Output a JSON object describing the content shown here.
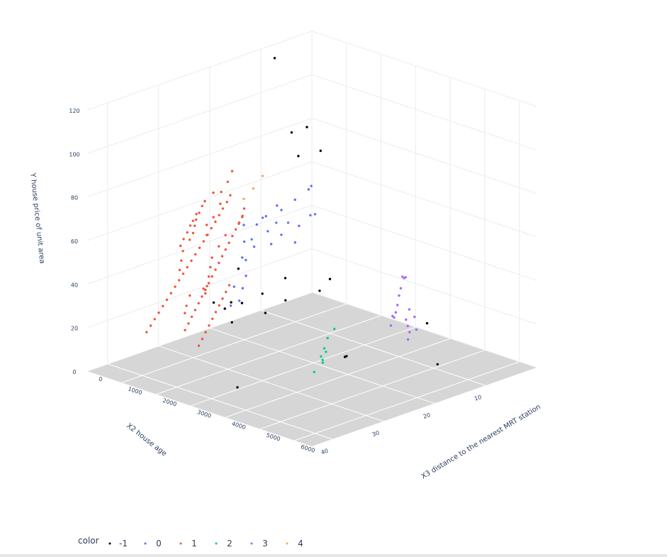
{
  "chart_data": {
    "type": "scatter",
    "dimensions": "3d",
    "axes": {
      "x": {
        "label": "X3 distance to the nearest MRT station",
        "ticks": [
          "0",
          "1000",
          "2000",
          "3000",
          "4000",
          "5000",
          "6000"
        ],
        "range": [
          0,
          6500
        ]
      },
      "y": {
        "label": "X2 house age",
        "ticks": [
          "10",
          "20",
          "30",
          "40"
        ],
        "range": [
          0,
          44
        ]
      },
      "z": {
        "label": "Y house price of unit area",
        "ticks": [
          "0",
          "20",
          "40",
          "60",
          "80",
          "100",
          "120"
        ],
        "range": [
          0,
          120
        ]
      }
    },
    "grid": true,
    "legend": {
      "title": "color",
      "placement": "bottom-left",
      "entries": [
        {
          "label": "-1",
          "color": "#000000"
        },
        {
          "label": "0",
          "color": "#636efa"
        },
        {
          "label": "1",
          "color": "#ef553b"
        },
        {
          "label": "2",
          "color": "#00cc96"
        },
        {
          "label": "3",
          "color": "#ab63fa"
        },
        {
          "label": "4",
          "color": "#ffa15a"
        }
      ]
    },
    "series": [
      {
        "name": "-1",
        "color": "#000000",
        "points": [
          [
            400,
            10,
            118
          ],
          [
            300,
            3,
            80
          ],
          [
            300,
            6,
            80
          ],
          [
            400,
            1,
            68
          ],
          [
            200,
            4,
            67
          ],
          [
            2600,
            32,
            51
          ],
          [
            3000,
            30,
            40
          ],
          [
            3000,
            34,
            39
          ],
          [
            2800,
            36,
            37
          ],
          [
            3300,
            38,
            35
          ],
          [
            1800,
            28,
            28
          ],
          [
            2200,
            24,
            22
          ],
          [
            1600,
            16,
            18
          ],
          [
            1300,
            14,
            25
          ],
          [
            1700,
            10,
            18
          ],
          [
            2000,
            10,
            25
          ],
          [
            4200,
            43,
            14
          ],
          [
            4500,
            24,
            14
          ],
          [
            4400,
            23,
            13
          ],
          [
            5400,
            14,
            26
          ],
          [
            6000,
            16,
            12
          ],
          [
            1000,
            26,
            22
          ]
        ]
      },
      {
        "name": "0",
        "color": "#636efa",
        "points": [
          [
            200,
            2,
            50
          ],
          [
            250,
            5,
            48
          ],
          [
            300,
            8,
            46
          ],
          [
            150,
            10,
            44
          ],
          [
            350,
            12,
            46
          ],
          [
            100,
            14,
            43
          ],
          [
            400,
            3,
            40
          ],
          [
            200,
            6,
            38
          ],
          [
            300,
            9,
            41
          ],
          [
            350,
            11,
            39
          ],
          [
            180,
            13,
            36
          ],
          [
            260,
            15,
            37
          ],
          [
            220,
            4,
            35
          ],
          [
            150,
            7,
            33
          ],
          [
            300,
            10,
            32
          ],
          [
            250,
            13,
            33
          ],
          [
            400,
            6,
            30
          ],
          [
            350,
            16,
            31
          ],
          [
            280,
            2,
            52
          ],
          [
            320,
            9,
            49
          ],
          [
            180,
            12,
            42
          ],
          [
            240,
            1,
            38
          ],
          [
            600,
            17,
            32
          ],
          [
            900,
            19,
            28
          ],
          [
            1100,
            21,
            25
          ],
          [
            1300,
            23,
            22
          ],
          [
            1200,
            24,
            20
          ],
          [
            1000,
            22,
            26
          ]
        ]
      },
      {
        "name": "1",
        "color": "#ef553b",
        "points": [
          [
            500,
            19,
            74
          ],
          [
            520,
            20,
            70
          ],
          [
            480,
            21,
            66
          ],
          [
            600,
            22,
            62
          ],
          [
            700,
            24,
            58
          ],
          [
            650,
            25,
            55
          ],
          [
            800,
            26,
            52
          ],
          [
            900,
            23,
            50
          ],
          [
            1000,
            25,
            47
          ],
          [
            1100,
            27,
            44
          ],
          [
            1200,
            28,
            41
          ],
          [
            1300,
            29,
            38
          ],
          [
            1400,
            30,
            35
          ],
          [
            1500,
            31,
            33
          ],
          [
            1000,
            28,
            30
          ],
          [
            900,
            30,
            28
          ],
          [
            1100,
            32,
            26
          ],
          [
            1200,
            33,
            24
          ],
          [
            600,
            27,
            56
          ],
          [
            700,
            28,
            54
          ],
          [
            750,
            29,
            52
          ],
          [
            850,
            31,
            49
          ],
          [
            950,
            32,
            46
          ],
          [
            1050,
            33,
            43
          ],
          [
            500,
            26,
            60
          ],
          [
            550,
            27,
            58
          ],
          [
            620,
            28,
            57
          ],
          [
            680,
            29,
            55
          ],
          [
            720,
            30,
            53
          ],
          [
            780,
            31,
            51
          ],
          [
            400,
            22,
            66
          ],
          [
            450,
            24,
            64
          ],
          [
            520,
            25,
            63
          ],
          [
            580,
            26,
            61
          ],
          [
            640,
            27,
            59
          ],
          [
            700,
            18,
            57
          ],
          [
            800,
            19,
            55
          ],
          [
            850,
            20,
            53
          ],
          [
            900,
            21,
            51
          ],
          [
            950,
            22,
            49
          ],
          [
            1000,
            23,
            47
          ],
          [
            1050,
            24,
            45
          ],
          [
            1100,
            25,
            43
          ],
          [
            1150,
            26,
            41
          ],
          [
            1200,
            27,
            39
          ],
          [
            1250,
            28,
            37
          ],
          [
            1300,
            29,
            35
          ],
          [
            1350,
            30,
            33
          ],
          [
            1400,
            31,
            31
          ],
          [
            1450,
            32,
            29
          ],
          [
            1500,
            33,
            27
          ],
          [
            1550,
            34,
            25
          ],
          [
            1600,
            35,
            23
          ],
          [
            1650,
            36,
            21
          ],
          [
            300,
            18,
            61
          ],
          [
            350,
            19,
            59
          ],
          [
            380,
            20,
            57
          ],
          [
            420,
            21,
            55
          ],
          [
            460,
            22,
            53
          ],
          [
            490,
            23,
            51
          ],
          [
            530,
            24,
            49
          ],
          [
            560,
            25,
            47
          ],
          [
            590,
            26,
            45
          ],
          [
            620,
            27,
            43
          ],
          [
            650,
            28,
            41
          ],
          [
            680,
            29,
            39
          ],
          [
            710,
            30,
            37
          ],
          [
            740,
            31,
            35
          ],
          [
            770,
            32,
            33
          ],
          [
            800,
            33,
            31
          ],
          [
            830,
            34,
            29
          ],
          [
            860,
            35,
            27
          ],
          [
            890,
            36,
            25
          ],
          [
            920,
            37,
            23
          ],
          [
            950,
            38,
            21
          ],
          [
            980,
            39,
            19
          ],
          [
            200,
            15,
            48
          ],
          [
            250,
            16,
            46
          ],
          [
            1700,
            29,
            30
          ],
          [
            1750,
            30,
            28
          ],
          [
            1800,
            31,
            26
          ],
          [
            1850,
            32,
            24
          ],
          [
            1900,
            33,
            22
          ],
          [
            1950,
            34,
            20
          ],
          [
            2000,
            35,
            18
          ],
          [
            2050,
            36,
            16
          ],
          [
            1600,
            27,
            34
          ],
          [
            1650,
            28,
            32
          ]
        ]
      },
      {
        "name": "2",
        "color": "#00cc96",
        "points": [
          [
            4000,
            24,
            20
          ],
          [
            4200,
            26,
            18
          ],
          [
            4100,
            25,
            15
          ],
          [
            4300,
            27,
            14
          ],
          [
            4400,
            28,
            17
          ],
          [
            4600,
            29,
            16
          ],
          [
            4500,
            30,
            12
          ],
          [
            3900,
            22,
            22
          ]
        ]
      },
      {
        "name": "3",
        "color": "#ab63fa",
        "points": [
          [
            3800,
            8,
            34
          ],
          [
            3900,
            9,
            30
          ],
          [
            4000,
            10,
            28
          ],
          [
            4100,
            11,
            25
          ],
          [
            4200,
            12,
            23
          ],
          [
            4300,
            13,
            22
          ],
          [
            4400,
            14,
            24
          ],
          [
            4500,
            15,
            21
          ],
          [
            4200,
            10,
            18
          ],
          [
            4400,
            11,
            17
          ],
          [
            4600,
            12,
            16
          ],
          [
            3700,
            7,
            32
          ],
          [
            4000,
            8,
            20
          ],
          [
            4300,
            9,
            19
          ],
          [
            4500,
            10,
            15
          ],
          [
            4700,
            13,
            14
          ],
          [
            3600,
            6,
            31
          ]
        ]
      },
      {
        "name": "4",
        "color": "#ffa15a",
        "points": [
          [
            50,
            10,
            62
          ],
          [
            80,
            12,
            58
          ],
          [
            100,
            14,
            55
          ]
        ]
      }
    ]
  }
}
